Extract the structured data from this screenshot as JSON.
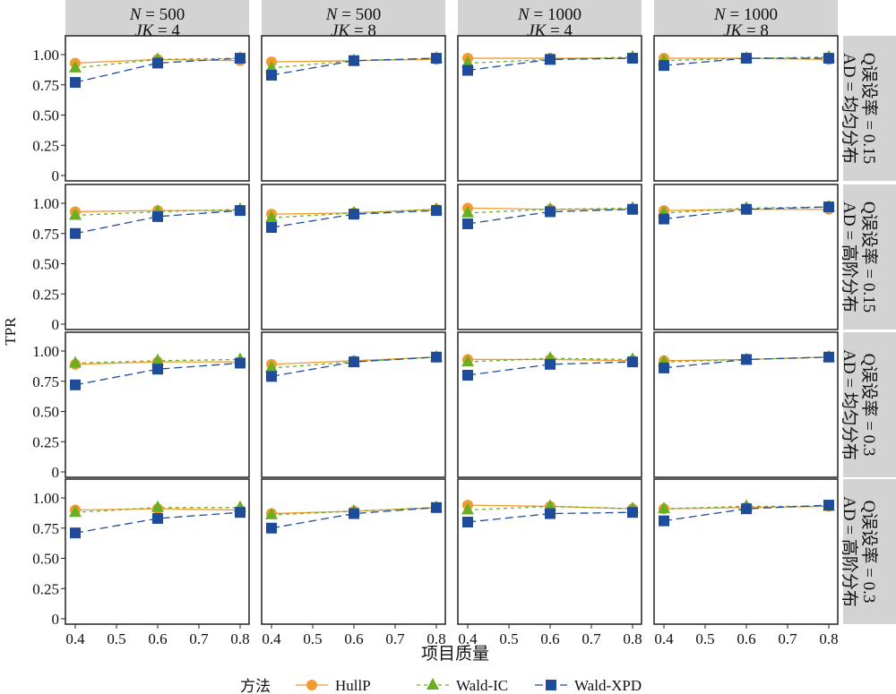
{
  "chart_data": {
    "type": "line",
    "title": "",
    "xlabel": "项目质量",
    "ylabel": "TPR",
    "x": [
      0.4,
      0.6,
      0.8
    ],
    "xlim": [
      0.38,
      0.82
    ],
    "ylim": [
      0,
      1.0
    ],
    "x_ticks": [
      "0.4",
      "0.5",
      "0.6",
      "0.7",
      "0.8"
    ],
    "x_tick_values": [
      0.4,
      0.5,
      0.6,
      0.7,
      0.8
    ],
    "y_ticks": [
      "0",
      "0.25",
      "0.50",
      "0.75",
      "1.00"
    ],
    "y_tick_values": [
      0,
      0.25,
      0.5,
      0.75,
      1.0
    ],
    "grid": false,
    "legend": {
      "title": "方法",
      "placement": "bottom",
      "entries": [
        "HullP",
        "Wald-IC",
        "Wald-XPD"
      ]
    },
    "series_styles": [
      {
        "name": "HullP",
        "color": "#F39A2E",
        "marker": "circle",
        "dash": "solid"
      },
      {
        "name": "Wald-IC",
        "color": "#6AAF23",
        "marker": "triangle",
        "dash": "short-dash"
      },
      {
        "name": "Wald-XPD",
        "color": "#1F4C9A",
        "marker": "square",
        "dash": "long-dash"
      }
    ],
    "columns": [
      {
        "n_label": "N",
        "n": "= 500",
        "jk_label": "JK",
        "jk": "= 4"
      },
      {
        "n_label": "N",
        "n": "= 500",
        "jk_label": "JK",
        "jk": "= 8"
      },
      {
        "n_label": "N",
        "n": "= 1000",
        "jk_label": "JK",
        "jk": "= 4"
      },
      {
        "n_label": "N",
        "n": "= 1000",
        "jk_label": "JK",
        "jk": "= 8"
      }
    ],
    "rows": [
      {
        "q": "Q误设率 = 0.15",
        "ad": "AD = 均匀分布"
      },
      {
        "q": "Q误设率 = 0.15",
        "ad": "AD = 高阶分布"
      },
      {
        "q": "Q误设率 = 0.3",
        "ad": "AD = 均匀分布"
      },
      {
        "q": "Q误设率 = 0.3",
        "ad": "AD = 高阶分布"
      }
    ],
    "panels": [
      [
        {
          "HullP": [
            0.93,
            0.96,
            0.95
          ],
          "Wald-IC": [
            0.89,
            0.96,
            0.97
          ],
          "Wald-XPD": [
            0.77,
            0.93,
            0.97
          ]
        },
        {
          "HullP": [
            0.94,
            0.95,
            0.96
          ],
          "Wald-IC": [
            0.89,
            0.95,
            0.97
          ],
          "Wald-XPD": [
            0.83,
            0.95,
            0.97
          ]
        },
        {
          "HullP": [
            0.97,
            0.97,
            0.97
          ],
          "Wald-IC": [
            0.93,
            0.96,
            0.98
          ],
          "Wald-XPD": [
            0.87,
            0.96,
            0.97
          ]
        },
        {
          "HullP": [
            0.97,
            0.97,
            0.96
          ],
          "Wald-IC": [
            0.95,
            0.97,
            0.98
          ],
          "Wald-XPD": [
            0.91,
            0.97,
            0.97
          ]
        }
      ],
      [
        {
          "HullP": [
            0.93,
            0.94,
            0.94
          ],
          "Wald-IC": [
            0.9,
            0.93,
            0.95
          ],
          "Wald-XPD": [
            0.75,
            0.89,
            0.94
          ]
        },
        {
          "HullP": [
            0.91,
            0.92,
            0.95
          ],
          "Wald-IC": [
            0.88,
            0.92,
            0.95
          ],
          "Wald-XPD": [
            0.8,
            0.91,
            0.94
          ]
        },
        {
          "HullP": [
            0.96,
            0.95,
            0.95
          ],
          "Wald-IC": [
            0.92,
            0.95,
            0.96
          ],
          "Wald-XPD": [
            0.83,
            0.93,
            0.95
          ]
        },
        {
          "HullP": [
            0.94,
            0.95,
            0.95
          ],
          "Wald-IC": [
            0.92,
            0.96,
            0.97
          ],
          "Wald-XPD": [
            0.87,
            0.95,
            0.97
          ]
        }
      ],
      [
        {
          "HullP": [
            0.89,
            0.91,
            0.91
          ],
          "Wald-IC": [
            0.9,
            0.92,
            0.93
          ],
          "Wald-XPD": [
            0.72,
            0.85,
            0.9
          ]
        },
        {
          "HullP": [
            0.89,
            0.92,
            0.95
          ],
          "Wald-IC": [
            0.86,
            0.91,
            0.95
          ],
          "Wald-XPD": [
            0.79,
            0.91,
            0.95
          ]
        },
        {
          "HullP": [
            0.93,
            0.93,
            0.92
          ],
          "Wald-IC": [
            0.91,
            0.94,
            0.93
          ],
          "Wald-XPD": [
            0.8,
            0.89,
            0.91
          ]
        },
        {
          "HullP": [
            0.92,
            0.93,
            0.95
          ],
          "Wald-IC": [
            0.91,
            0.93,
            0.95
          ],
          "Wald-XPD": [
            0.86,
            0.93,
            0.95
          ]
        }
      ],
      [
        {
          "HullP": [
            0.9,
            0.91,
            0.9
          ],
          "Wald-IC": [
            0.88,
            0.92,
            0.92
          ],
          "Wald-XPD": [
            0.71,
            0.83,
            0.88
          ]
        },
        {
          "HullP": [
            0.87,
            0.89,
            0.92
          ],
          "Wald-IC": [
            0.86,
            0.89,
            0.92
          ],
          "Wald-XPD": [
            0.75,
            0.87,
            0.92
          ]
        },
        {
          "HullP": [
            0.94,
            0.93,
            0.91
          ],
          "Wald-IC": [
            0.9,
            0.93,
            0.91
          ],
          "Wald-XPD": [
            0.8,
            0.87,
            0.88
          ]
        },
        {
          "HullP": [
            0.91,
            0.92,
            0.93
          ],
          "Wald-IC": [
            0.91,
            0.93,
            0.93
          ],
          "Wald-XPD": [
            0.81,
            0.91,
            0.94
          ]
        }
      ]
    ]
  }
}
